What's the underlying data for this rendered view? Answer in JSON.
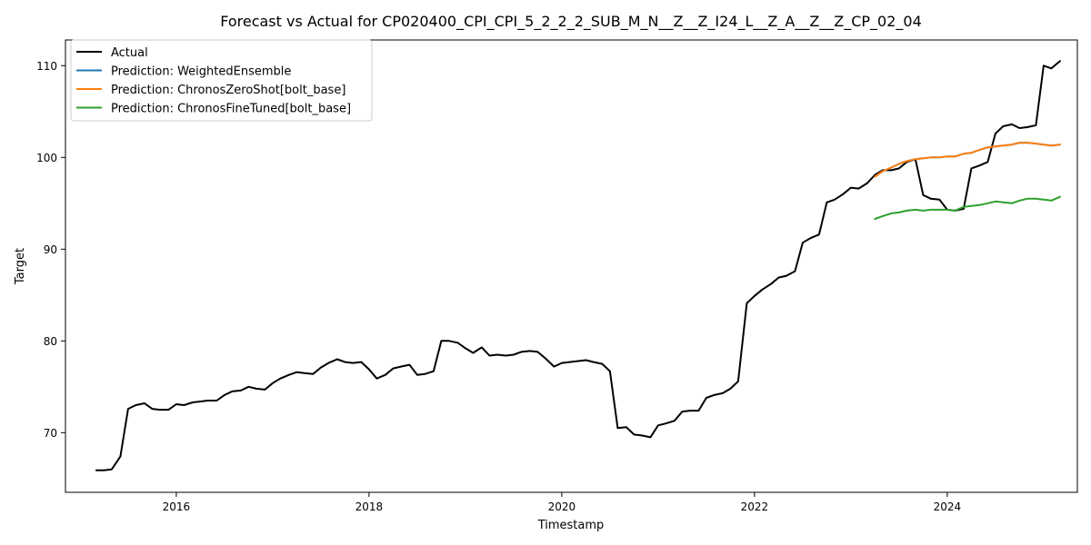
{
  "chart_data": {
    "type": "line",
    "title": "Forecast vs Actual for CP020400_CPI_CPI_5_2_2_2_SUB_M_N__Z__Z_I24_L__Z_A__Z__Z_CP_02_04",
    "xlabel": "Timestamp",
    "ylabel": "Target",
    "xlim": [
      2014.85,
      2025.35
    ],
    "ylim": [
      63.5,
      112.8
    ],
    "xticks": [
      {
        "value": 2016,
        "label": "2016"
      },
      {
        "value": 2018,
        "label": "2018"
      },
      {
        "value": 2020,
        "label": "2020"
      },
      {
        "value": 2022,
        "label": "2022"
      },
      {
        "value": 2024,
        "label": "2024"
      }
    ],
    "yticks": [
      {
        "value": 70,
        "label": "70"
      },
      {
        "value": 80,
        "label": "80"
      },
      {
        "value": 90,
        "label": "90"
      },
      {
        "value": 100,
        "label": "100"
      },
      {
        "value": 110,
        "label": "110"
      }
    ],
    "legend_position": "top-left",
    "grid": false,
    "series": [
      {
        "name": "Actual",
        "color": "#000000",
        "x": [
          2015.17,
          2015.25,
          2015.33,
          2015.42,
          2015.5,
          2015.58,
          2015.67,
          2015.75,
          2015.83,
          2015.92,
          2016.0,
          2016.08,
          2016.17,
          2016.25,
          2016.33,
          2016.42,
          2016.5,
          2016.58,
          2016.67,
          2016.75,
          2016.83,
          2016.92,
          2017.0,
          2017.08,
          2017.17,
          2017.25,
          2017.33,
          2017.42,
          2017.5,
          2017.58,
          2017.67,
          2017.75,
          2017.83,
          2017.92,
          2018.0,
          2018.08,
          2018.17,
          2018.25,
          2018.33,
          2018.42,
          2018.5,
          2018.58,
          2018.67,
          2018.75,
          2018.83,
          2018.92,
          2019.0,
          2019.08,
          2019.17,
          2019.25,
          2019.33,
          2019.42,
          2019.5,
          2019.58,
          2019.67,
          2019.75,
          2019.83,
          2019.92,
          2020.0,
          2020.08,
          2020.17,
          2020.25,
          2020.33,
          2020.42,
          2020.5,
          2020.58,
          2020.67,
          2020.75,
          2020.83,
          2020.92,
          2021.0,
          2021.08,
          2021.17,
          2021.25,
          2021.33,
          2021.42,
          2021.5,
          2021.58,
          2021.67,
          2021.75,
          2021.83,
          2021.92,
          2022.0,
          2022.08,
          2022.17,
          2022.25,
          2022.33,
          2022.42,
          2022.5,
          2022.58,
          2022.67,
          2022.75,
          2022.83,
          2022.92,
          2023.0,
          2023.08,
          2023.17,
          2023.25,
          2023.33,
          2023.42,
          2023.5,
          2023.58,
          2023.67,
          2023.75,
          2023.83,
          2023.92,
          2024.0,
          2024.08,
          2024.17,
          2024.25,
          2024.33,
          2024.42,
          2024.5,
          2024.58,
          2024.67,
          2024.75,
          2024.83,
          2024.92,
          2025.0,
          2025.08,
          2025.17
        ],
        "y": [
          65.9,
          65.9,
          66.0,
          67.4,
          72.6,
          73.0,
          73.2,
          72.6,
          72.5,
          72.5,
          73.1,
          73.0,
          73.3,
          73.4,
          73.5,
          73.5,
          74.1,
          74.5,
          74.6,
          75.0,
          74.8,
          74.7,
          75.4,
          75.9,
          76.3,
          76.6,
          76.5,
          76.4,
          77.1,
          77.6,
          78.0,
          77.7,
          77.6,
          77.7,
          76.9,
          75.9,
          76.3,
          77.0,
          77.2,
          77.4,
          76.3,
          76.4,
          76.7,
          80.0,
          80.0,
          79.8,
          79.2,
          78.7,
          79.3,
          78.4,
          78.5,
          78.4,
          78.5,
          78.8,
          78.9,
          78.8,
          78.1,
          77.2,
          77.6,
          77.7,
          77.8,
          77.9,
          77.7,
          77.5,
          76.7,
          70.5,
          70.6,
          69.8,
          69.7,
          69.5,
          70.8,
          71.0,
          71.3,
          72.3,
          72.4,
          72.4,
          73.8,
          74.1,
          74.3,
          74.8,
          75.6,
          84.1,
          84.9,
          85.6,
          86.2,
          86.9,
          87.1,
          87.6,
          90.7,
          91.2,
          91.6,
          95.1,
          95.4,
          96.0,
          96.7,
          96.6,
          97.2,
          98.1,
          98.6,
          98.6,
          98.8,
          99.5,
          99.8,
          95.9,
          95.5,
          95.4,
          94.3,
          94.2,
          94.4,
          98.8,
          99.1,
          99.5,
          102.6,
          103.4,
          103.6,
          103.2,
          103.3,
          103.5,
          110.0,
          109.7,
          110.5
        ]
      },
      {
        "name": "Prediction: WeightedEnsemble",
        "color": "#1f77b4",
        "x": [
          2023.25,
          2023.33,
          2023.42,
          2023.5,
          2023.58,
          2023.67,
          2023.75,
          2023.83,
          2023.92,
          2024.0,
          2024.08,
          2024.17,
          2024.25,
          2024.33,
          2024.42,
          2024.5,
          2024.58,
          2024.67,
          2024.75,
          2024.83,
          2024.92,
          2025.0,
          2025.08,
          2025.17
        ],
        "y": [
          97.9,
          98.5,
          98.9,
          99.3,
          99.6,
          99.8,
          99.9,
          100.0,
          100.0,
          100.1,
          100.1,
          100.4,
          100.5,
          100.8,
          101.1,
          101.2,
          101.3,
          101.4,
          101.6,
          101.6,
          101.5,
          101.4,
          101.3,
          101.4
        ]
      },
      {
        "name": "Prediction: ChronosZeroShot[bolt_base]",
        "color": "#ff7f0e",
        "x": [
          2023.25,
          2023.33,
          2023.42,
          2023.5,
          2023.58,
          2023.67,
          2023.75,
          2023.83,
          2023.92,
          2024.0,
          2024.08,
          2024.17,
          2024.25,
          2024.33,
          2024.42,
          2024.5,
          2024.58,
          2024.67,
          2024.75,
          2024.83,
          2024.92,
          2025.0,
          2025.08,
          2025.17
        ],
        "y": [
          97.9,
          98.5,
          98.9,
          99.3,
          99.6,
          99.8,
          99.9,
          100.0,
          100.0,
          100.1,
          100.1,
          100.4,
          100.5,
          100.8,
          101.1,
          101.2,
          101.3,
          101.4,
          101.6,
          101.6,
          101.5,
          101.4,
          101.3,
          101.4
        ]
      },
      {
        "name": "Prediction: ChronosFineTuned[bolt_base]",
        "color": "#2ca02c",
        "x": [
          2023.25,
          2023.33,
          2023.42,
          2023.5,
          2023.58,
          2023.67,
          2023.75,
          2023.83,
          2023.92,
          2024.0,
          2024.08,
          2024.17,
          2024.25,
          2024.33,
          2024.42,
          2024.5,
          2024.58,
          2024.67,
          2024.75,
          2024.83,
          2024.92,
          2025.0,
          2025.08,
          2025.17
        ],
        "y": [
          93.3,
          93.6,
          93.9,
          94.0,
          94.2,
          94.3,
          94.2,
          94.3,
          94.3,
          94.3,
          94.2,
          94.6,
          94.7,
          94.8,
          95.0,
          95.2,
          95.1,
          95.0,
          95.3,
          95.5,
          95.5,
          95.4,
          95.3,
          95.7
        ]
      }
    ]
  }
}
